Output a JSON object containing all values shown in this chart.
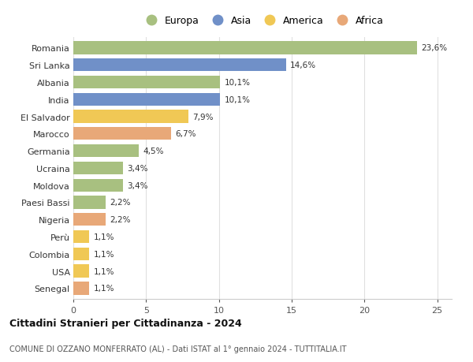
{
  "countries": [
    "Romania",
    "Sri Lanka",
    "Albania",
    "India",
    "El Salvador",
    "Marocco",
    "Germania",
    "Ucraina",
    "Moldova",
    "Paesi Bassi",
    "Nigeria",
    "Perù",
    "Colombia",
    "USA",
    "Senegal"
  ],
  "values": [
    23.6,
    14.6,
    10.1,
    10.1,
    7.9,
    6.7,
    4.5,
    3.4,
    3.4,
    2.2,
    2.2,
    1.1,
    1.1,
    1.1,
    1.1
  ],
  "labels": [
    "23,6%",
    "14,6%",
    "10,1%",
    "10,1%",
    "7,9%",
    "6,7%",
    "4,5%",
    "3,4%",
    "3,4%",
    "2,2%",
    "2,2%",
    "1,1%",
    "1,1%",
    "1,1%",
    "1,1%"
  ],
  "continents": [
    "Europa",
    "Asia",
    "Europa",
    "Asia",
    "America",
    "Africa",
    "Europa",
    "Europa",
    "Europa",
    "Europa",
    "Africa",
    "America",
    "America",
    "America",
    "Africa"
  ],
  "colors": {
    "Europa": "#a8c080",
    "Asia": "#7090c8",
    "America": "#f0c855",
    "Africa": "#e8a878"
  },
  "legend_order": [
    "Europa",
    "Asia",
    "America",
    "Africa"
  ],
  "title": "Cittadini Stranieri per Cittadinanza - 2024",
  "subtitle": "COMUNE DI OZZANO MONFERRATO (AL) - Dati ISTAT al 1° gennaio 2024 - TUTTITALIA.IT",
  "xlim": [
    0,
    26
  ],
  "xticks": [
    0,
    5,
    10,
    15,
    20,
    25
  ],
  "background_color": "#ffffff",
  "grid_color": "#e0e0e0",
  "bar_height": 0.75
}
